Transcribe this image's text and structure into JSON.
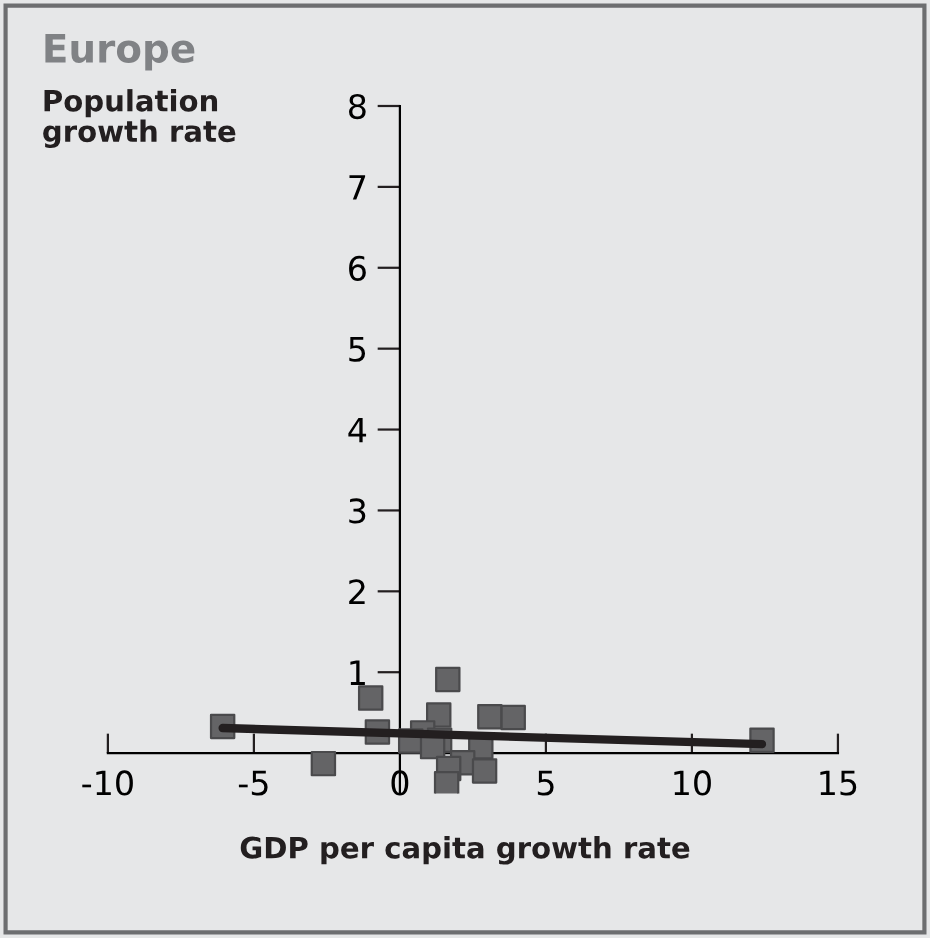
{
  "chart_data": {
    "type": "scatter",
    "title": "Europe",
    "ylabel": "Population\ngrowth rate",
    "xlabel": "GDP per capita growth rate",
    "xlim": [
      -10,
      15
    ],
    "xticks": [
      -10,
      -5,
      0,
      5,
      10,
      15
    ],
    "ylim": [
      -0.5,
      8
    ],
    "yticks": [
      1,
      2,
      3,
      4,
      5,
      6,
      7,
      8
    ],
    "grid": false,
    "legend": false,
    "series": [
      {
        "marker": "square",
        "color": "#646466",
        "x": [
          -6.07,
          -1.0,
          -0.77,
          -2.62,
          1.64,
          1.33,
          3.08,
          3.88,
          0.78,
          0.37,
          1.36,
          1.12,
          2.77,
          2.15,
          1.67,
          2.9,
          1.6,
          12.4
        ],
        "values": [
          0.33,
          0.68,
          0.26,
          -0.13,
          0.91,
          0.47,
          0.45,
          0.44,
          0.25,
          0.15,
          0.16,
          0.08,
          0.08,
          -0.12,
          -0.19,
          -0.22,
          -0.38,
          0.16
        ]
      },
      {
        "type": "line",
        "color": "#231f20",
        "x": [
          -6.07,
          12.4
        ],
        "values": [
          0.31,
          0.11
        ]
      }
    ]
  }
}
